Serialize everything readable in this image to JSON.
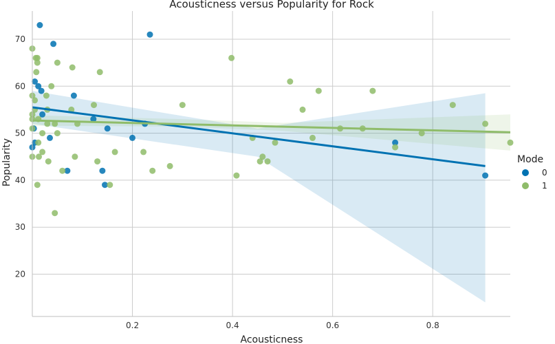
{
  "chart_data": {
    "type": "scatter",
    "title": "Acousticness versus Popularity for Rock",
    "xlabel": "Acousticness",
    "ylabel": "Popularity",
    "xlim": [
      0,
      0.955
    ],
    "ylim": [
      11,
      76
    ],
    "x_ticks": [
      0.2,
      0.4,
      0.6,
      0.8
    ],
    "x_tick_labels": [
      "0.2",
      "0.4",
      "0.6",
      "0.8"
    ],
    "y_ticks": [
      20,
      30,
      40,
      50,
      60,
      70
    ],
    "y_tick_labels": [
      "20",
      "30",
      "40",
      "50",
      "60",
      "70"
    ],
    "grid": true,
    "legend": {
      "title": "Mode",
      "placement": "right",
      "entries": [
        "0",
        "1"
      ]
    },
    "series": [
      {
        "name": "0",
        "color": "#0072b2",
        "points": [
          [
            0.015,
            73
          ],
          [
            0.235,
            71
          ],
          [
            0.042,
            69
          ],
          [
            0.005,
            61
          ],
          [
            0.012,
            60
          ],
          [
            0.018,
            59
          ],
          [
            0.083,
            58
          ],
          [
            0.02,
            54
          ],
          [
            0.122,
            53
          ],
          [
            0.15,
            51
          ],
          [
            0.003,
            51
          ],
          [
            0.005,
            48
          ],
          [
            0.0,
            47
          ],
          [
            0.035,
            49
          ],
          [
            0.2,
            49
          ],
          [
            0.225,
            52
          ],
          [
            0.07,
            42
          ],
          [
            0.14,
            42
          ],
          [
            0.145,
            39
          ],
          [
            0.725,
            48
          ],
          [
            0.905,
            41
          ]
        ],
        "regression": {
          "x": [
            0.0,
            0.905
          ],
          "y": [
            55.5,
            43.0
          ]
        },
        "ci_band": {
          "x": [
            0.0,
            0.45,
            0.905
          ],
          "upper": [
            59.0,
            51.0,
            58.5
          ],
          "lower": [
            52.0,
            45.0,
            14.0
          ]
        }
      },
      {
        "name": "1",
        "color": "#8fbc6a",
        "points": [
          [
            0.0,
            68
          ],
          [
            0.007,
            66
          ],
          [
            0.01,
            66
          ],
          [
            0.01,
            65
          ],
          [
            0.05,
            65
          ],
          [
            0.08,
            64
          ],
          [
            0.008,
            63
          ],
          [
            0.135,
            63
          ],
          [
            0.038,
            60
          ],
          [
            0.0,
            58
          ],
          [
            0.005,
            57
          ],
          [
            0.028,
            58
          ],
          [
            0.123,
            56
          ],
          [
            0.3,
            56
          ],
          [
            0.0,
            54
          ],
          [
            0.005,
            55
          ],
          [
            0.078,
            55
          ],
          [
            0.03,
            55
          ],
          [
            0.0,
            53
          ],
          [
            0.012,
            53
          ],
          [
            0.03,
            52
          ],
          [
            0.045,
            52
          ],
          [
            0.09,
            52
          ],
          [
            0.0,
            51
          ],
          [
            0.02,
            50
          ],
          [
            0.05,
            50
          ],
          [
            0.0,
            45
          ],
          [
            0.012,
            48
          ],
          [
            0.085,
            45
          ],
          [
            0.013,
            45
          ],
          [
            0.02,
            46
          ],
          [
            0.032,
            44
          ],
          [
            0.06,
            42
          ],
          [
            0.13,
            44
          ],
          [
            0.165,
            46
          ],
          [
            0.222,
            46
          ],
          [
            0.24,
            42
          ],
          [
            0.275,
            43
          ],
          [
            0.155,
            39
          ],
          [
            0.01,
            39
          ],
          [
            0.045,
            33
          ],
          [
            0.398,
            66
          ],
          [
            0.515,
            61
          ],
          [
            0.572,
            59
          ],
          [
            0.68,
            59
          ],
          [
            0.54,
            55
          ],
          [
            0.84,
            56
          ],
          [
            0.615,
            51
          ],
          [
            0.66,
            51
          ],
          [
            0.44,
            49
          ],
          [
            0.485,
            48
          ],
          [
            0.56,
            49
          ],
          [
            0.455,
            44
          ],
          [
            0.46,
            45
          ],
          [
            0.47,
            44
          ],
          [
            0.408,
            41
          ],
          [
            0.725,
            47
          ],
          [
            0.778,
            50
          ],
          [
            0.905,
            52
          ],
          [
            0.955,
            48
          ]
        ],
        "regression": {
          "x": [
            0.0,
            0.955
          ],
          "y": [
            52.7,
            50.2
          ]
        },
        "ci_band": {
          "x": [
            0.0,
            0.3,
            0.5,
            0.955
          ],
          "upper": [
            53.8,
            53.0,
            52.2,
            54.0
          ],
          "lower": [
            51.6,
            51.4,
            50.5,
            46.3
          ]
        }
      }
    ]
  }
}
